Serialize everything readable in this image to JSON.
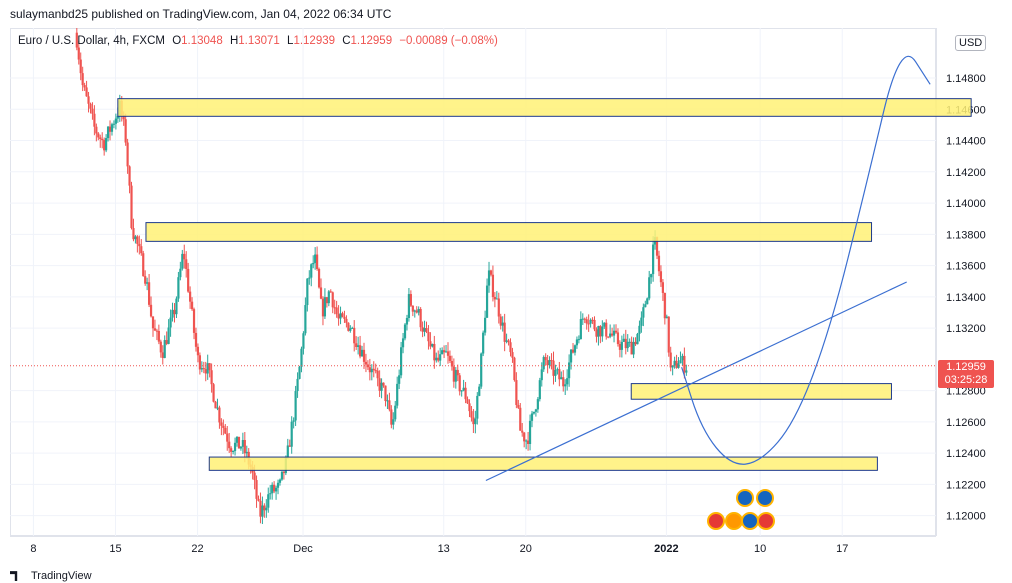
{
  "publisher": "sulaymanbd25 published on TradingView.com, Jan 04, 2022 06:34 UTC",
  "legend": {
    "symbol": "Euro / U.S. Dollar, 4h, FXCM",
    "open_label": "O",
    "open": "1.13048",
    "high_label": "H",
    "high": "1.13071",
    "low_label": "L",
    "low": "1.12939",
    "close_label": "C",
    "close": "1.12959",
    "change": "−0.00089 (−0.08%)"
  },
  "currency_button": "USD",
  "last_price": {
    "price": "1.12959",
    "countdown": "03:25:28",
    "color": "#ef5350"
  },
  "footer_brand": "TradingView",
  "colors": {
    "up": "#26a69a",
    "down": "#ef5350",
    "zone_fill": "#fff176",
    "zone_border": "#1e3a8a",
    "drawing": "#3b6fd1"
  },
  "icons": [
    "tradingview-logo-icon",
    "eu-flag-icon",
    "us-flag-icon"
  ],
  "chart_data": {
    "type": "candlestick",
    "symbol": "EURUSD",
    "timeframe": "4h",
    "y_ticks": [
      "1.14800",
      "1.14600",
      "1.14400",
      "1.14200",
      "1.14000",
      "1.13800",
      "1.13600",
      "1.13400",
      "1.13200",
      "1.12800",
      "1.12600",
      "1.12400",
      "1.12200",
      "1.12000"
    ],
    "ylim": [
      1.1187,
      1.1512
    ],
    "x_ticks": [
      {
        "label": "8",
        "day": 0
      },
      {
        "label": "15",
        "day": 7
      },
      {
        "label": "22",
        "day": 14
      },
      {
        "label": "Dec",
        "day": 23
      },
      {
        "label": "13",
        "day": 35
      },
      {
        "label": "20",
        "day": 42
      },
      {
        "label": "2022",
        "day": 54
      },
      {
        "label": "10",
        "day": 62
      },
      {
        "label": "17",
        "day": 69
      }
    ],
    "xlim": [
      -2.0,
      77.0
    ],
    "trend_path": [
      [
        3.7,
        1.1505
      ],
      [
        4.2,
        1.1475
      ],
      [
        5.2,
        1.1448
      ],
      [
        6.0,
        1.1438
      ],
      [
        6.8,
        1.1452
      ],
      [
        7.4,
        1.1462
      ],
      [
        7.9,
        1.144
      ],
      [
        8.4,
        1.1385
      ],
      [
        8.9,
        1.1372
      ],
      [
        9.6,
        1.1352
      ],
      [
        10.2,
        1.132
      ],
      [
        11.0,
        1.1305
      ],
      [
        12.0,
        1.133
      ],
      [
        12.8,
        1.137
      ],
      [
        13.4,
        1.1335
      ],
      [
        14.0,
        1.13
      ],
      [
        14.8,
        1.1295
      ],
      [
        15.8,
        1.1265
      ],
      [
        16.8,
        1.1245
      ],
      [
        17.8,
        1.1245
      ],
      [
        18.6,
        1.123
      ],
      [
        19.3,
        1.12
      ],
      [
        20.2,
        1.1215
      ],
      [
        21.0,
        1.1218
      ],
      [
        21.6,
        1.1235
      ],
      [
        22.2,
        1.1265
      ],
      [
        22.8,
        1.13
      ],
      [
        23.4,
        1.135
      ],
      [
        24.0,
        1.1365
      ],
      [
        24.6,
        1.133
      ],
      [
        25.3,
        1.1345
      ],
      [
        26.0,
        1.1325
      ],
      [
        27.0,
        1.1322
      ],
      [
        28.0,
        1.1305
      ],
      [
        29.0,
        1.129
      ],
      [
        30.0,
        1.1278
      ],
      [
        30.6,
        1.1255
      ],
      [
        31.4,
        1.1305
      ],
      [
        32.0,
        1.1338
      ],
      [
        32.8,
        1.133
      ],
      [
        33.6,
        1.1312
      ],
      [
        34.4,
        1.1298
      ],
      [
        35.2,
        1.1303
      ],
      [
        36.2,
        1.1285
      ],
      [
        37.0,
        1.1275
      ],
      [
        37.6,
        1.1255
      ],
      [
        38.2,
        1.13
      ],
      [
        38.8,
        1.1355
      ],
      [
        39.6,
        1.1335
      ],
      [
        40.2,
        1.1315
      ],
      [
        40.8,
        1.13
      ],
      [
        41.5,
        1.1255
      ],
      [
        42.1,
        1.1248
      ],
      [
        42.8,
        1.127
      ],
      [
        43.6,
        1.13
      ],
      [
        44.4,
        1.1292
      ],
      [
        45.2,
        1.1285
      ],
      [
        46.0,
        1.1305
      ],
      [
        47.0,
        1.133
      ],
      [
        48.0,
        1.132
      ],
      [
        49.0,
        1.1318
      ],
      [
        50.0,
        1.131
      ],
      [
        51.0,
        1.1308
      ],
      [
        51.8,
        1.132
      ],
      [
        52.4,
        1.1345
      ],
      [
        53.0,
        1.1375
      ],
      [
        53.5,
        1.135
      ],
      [
        54.0,
        1.1325
      ],
      [
        54.4,
        1.129
      ],
      [
        55.0,
        1.13
      ],
      [
        55.8,
        1.1295
      ]
    ],
    "zones": [
      {
        "x0": 7.2,
        "x1": 80.0,
        "y0": 1.14555,
        "y1": 1.14668
      },
      {
        "x0": 9.6,
        "x1": 71.5,
        "y0": 1.13755,
        "y1": 1.13875
      },
      {
        "x0": 51.0,
        "x1": 73.2,
        "y0": 1.12745,
        "y1": 1.12845
      },
      {
        "x0": 15.0,
        "x1": 72.0,
        "y0": 1.1229,
        "y1": 1.12375
      }
    ],
    "trendline": [
      [
        38.6,
        1.12225
      ],
      [
        74.5,
        1.13495
      ]
    ],
    "projection": [
      [
        55.3,
        1.1295
      ],
      [
        57.0,
        1.1255
      ],
      [
        59.5,
        1.1232
      ],
      [
        62.0,
        1.1234
      ],
      [
        65.0,
        1.126
      ],
      [
        68.0,
        1.132
      ],
      [
        71.0,
        1.141
      ],
      [
        74.0,
        1.1505
      ],
      [
        76.5,
        1.1476
      ]
    ],
    "last_price": 1.12959
  }
}
